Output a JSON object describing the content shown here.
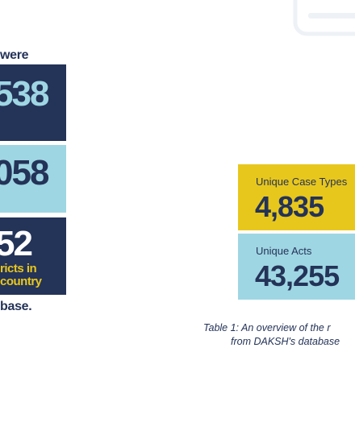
{
  "left_panel": {
    "top_text": "were",
    "stat_1": "538",
    "stat_2": "058",
    "stat_3": "52",
    "stat_3_line1": "ricts in",
    "stat_3_line2": "country",
    "bottom_text": "base."
  },
  "cards": [
    {
      "label": "Unique Case Types",
      "value": "4,835"
    },
    {
      "label": "Unique Acts",
      "value": "43,255"
    }
  ],
  "caption": {
    "line1": "Table 1:  An overview of the r",
    "line2": "from DAKSH's database"
  },
  "colors": {
    "navy": "#243358",
    "sky": "#9fd6e3",
    "gold": "#e8c71c"
  }
}
